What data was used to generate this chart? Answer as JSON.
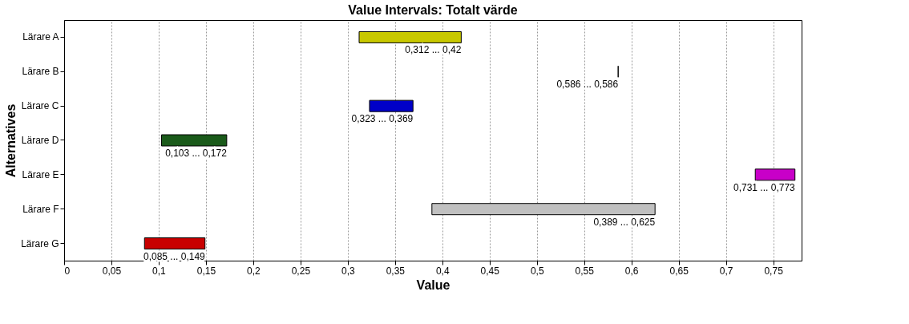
{
  "chart_data": {
    "type": "bar",
    "orientation": "horizontal",
    "title": "Value Intervals: Totalt värde",
    "xlabel": "Value",
    "ylabel": "Alternatives",
    "categories": [
      "Lärare A",
      "Lärare B",
      "Lärare C",
      "Lärare D",
      "Lärare E",
      "Lärare F",
      "Lärare G"
    ],
    "base": [
      0.312,
      0.586,
      0.323,
      0.103,
      0.731,
      0.389,
      0.085
    ],
    "values": [
      0.108,
      0,
      0.046,
      0.069,
      0.042,
      0.236,
      0.064
    ],
    "colors": [
      "#c8c800",
      "#000000",
      "#0000c8",
      "#1a5a1a",
      "#c800c8",
      "#c0c0c0",
      "#c80000"
    ],
    "annotations": [
      {
        "text": "0,312 ... 0,42",
        "x": 0.42,
        "y": "Lärare A"
      },
      {
        "text": "0,586 ... 0,586",
        "x": 0.586,
        "y": "Lärare B"
      },
      {
        "text": "0,323 ... 0,369",
        "x": 0.369,
        "y": "Lärare C"
      },
      {
        "text": "0,103 ... 0,172",
        "x": 0.172,
        "y": "Lärare D"
      },
      {
        "text": "0,731 ... 0,773",
        "x": 0.773,
        "y": "Lärare E"
      },
      {
        "text": "0,389 ... 0,625",
        "x": 0.625,
        "y": "Lärare F"
      },
      {
        "text": "0,085 ... 0,149",
        "x": 0.149,
        "y": "Lärare G"
      }
    ],
    "xlim": [
      0,
      0.78
    ],
    "xticks": [
      0,
      {
        "value": 0.05,
        "label": "0,05"
      },
      {
        "value": 0.1,
        "label": "0,1"
      },
      {
        "value": 0.15,
        "label": "0,15"
      },
      {
        "value": 0.2,
        "label": "0,2"
      },
      {
        "value": 0.25,
        "label": "0,25"
      },
      {
        "value": 0.3,
        "label": "0,3"
      },
      {
        "value": 0.35,
        "label": "0,35"
      },
      {
        "value": 0.4,
        "label": "0,4"
      },
      {
        "value": 0.45,
        "label": "0,45"
      },
      {
        "value": 0.5,
        "label": "0,5"
      },
      {
        "value": 0.55,
        "label": "0,55"
      },
      {
        "value": 0.6,
        "label": "0,6"
      },
      {
        "value": 0.65,
        "label": "0,65"
      },
      {
        "value": 0.7,
        "label": "0,7"
      },
      {
        "value": 0.75,
        "label": "0,75"
      }
    ],
    "grid": "x"
  }
}
